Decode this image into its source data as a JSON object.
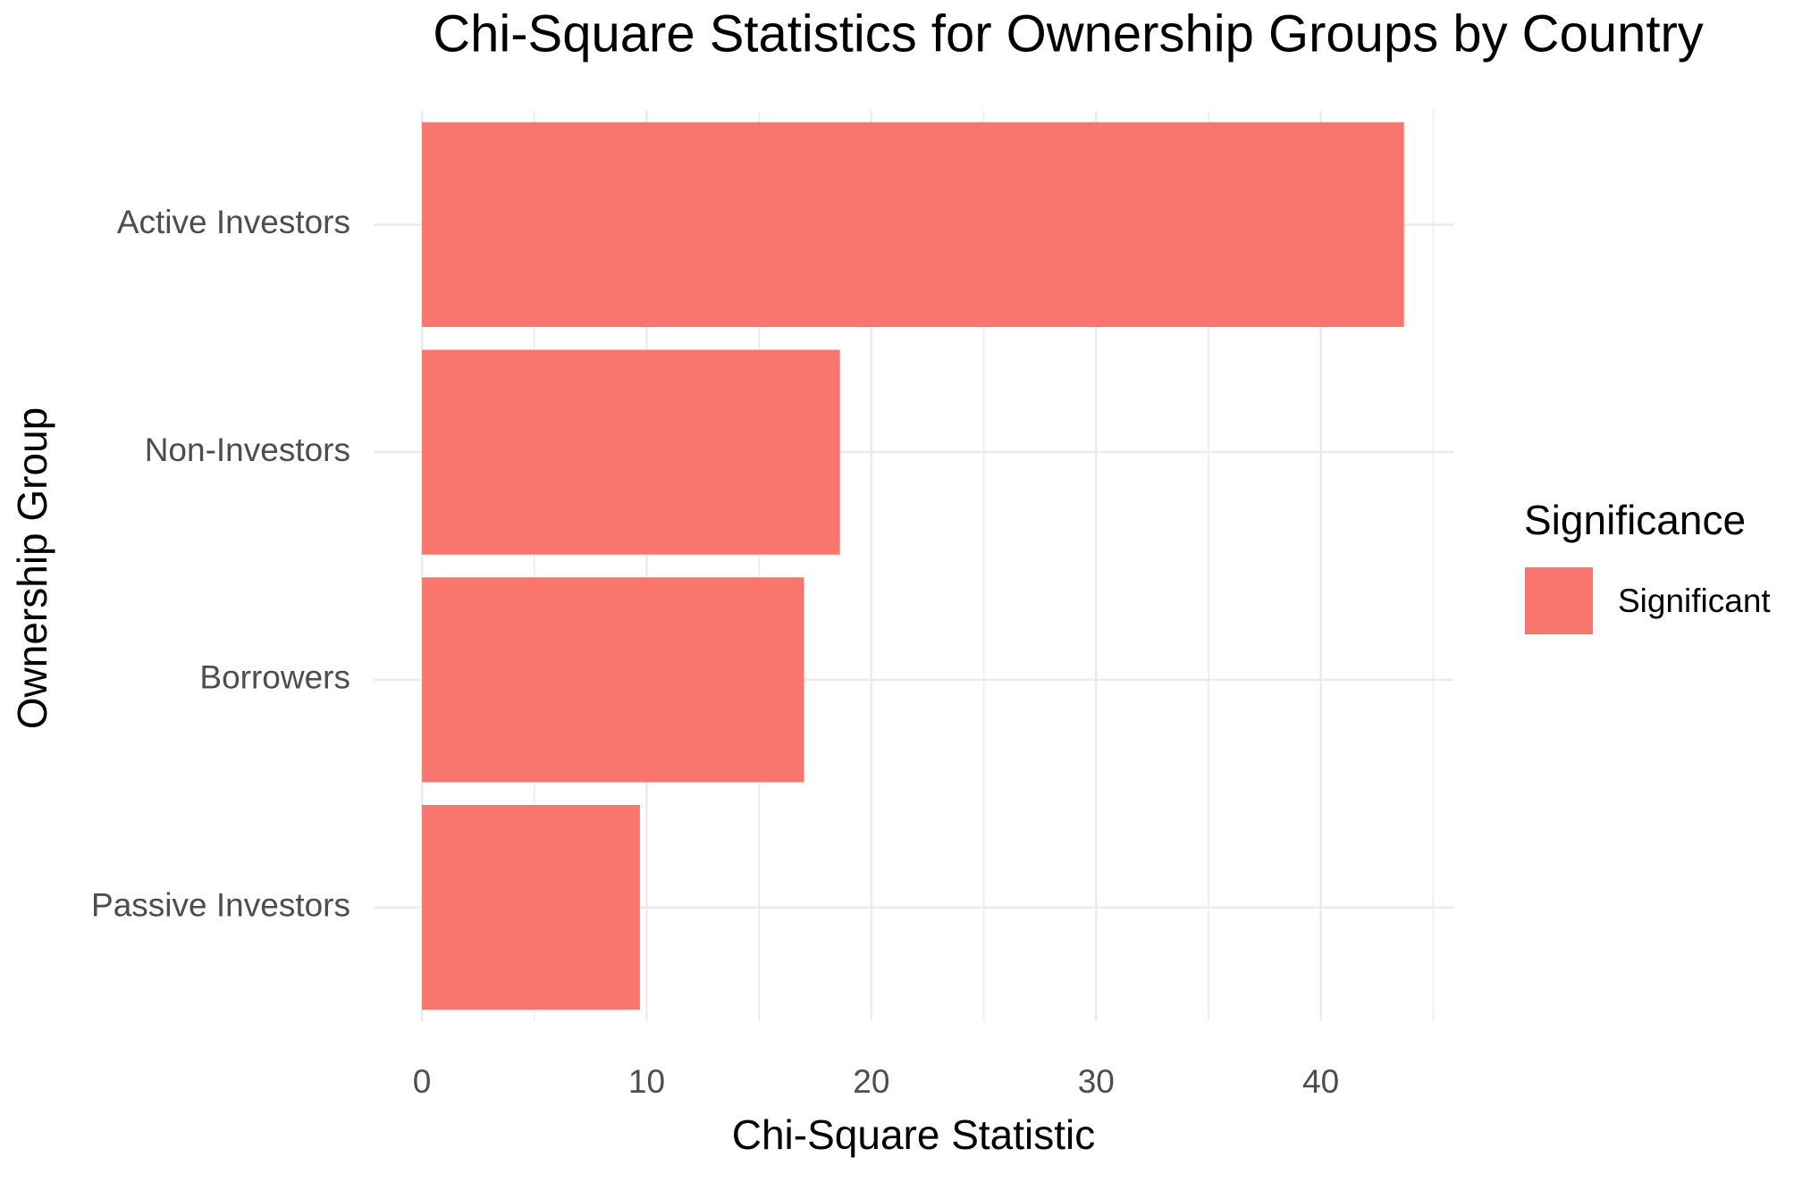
{
  "chart_data": {
    "type": "bar",
    "orientation": "horizontal",
    "title": "Chi-Square Statistics for Ownership Groups by Country",
    "x_label": "Chi-Square Statistic",
    "y_label": "Ownership Group",
    "legend_title": "Significance",
    "legend_position": "right",
    "categories": [
      "Active Investors",
      "Non-Investors",
      "Borrowers",
      "Passive Investors"
    ],
    "series": [
      {
        "name": "Significant",
        "color": "#F8766D",
        "values": [
          43.7,
          18.6,
          17.0,
          9.7
        ]
      }
    ],
    "xlim": [
      -2.15,
      45.9
    ],
    "xticks": [
      0,
      10,
      20,
      30,
      40
    ],
    "grid": true,
    "minor_grid": true
  }
}
